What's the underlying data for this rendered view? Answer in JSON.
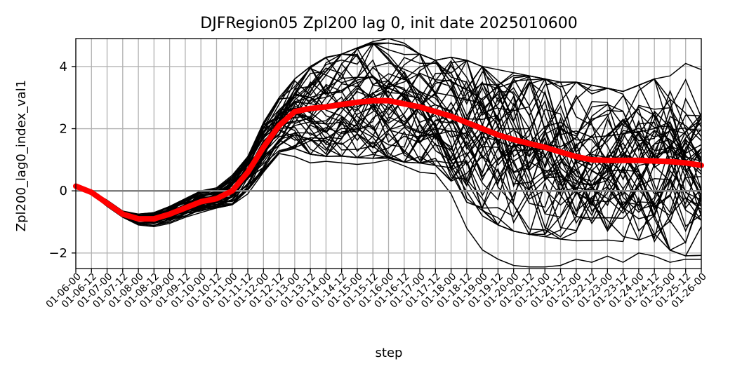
{
  "chart_data": {
    "type": "line",
    "title": "DJFRegion05 Zpl200 lag 0, init date 2025010600",
    "xlabel": "step",
    "ylabel": "Zpl200_lag0_index_val1",
    "categories": [
      "01-06-00",
      "01-06-12",
      "01-07-00",
      "01-07-12",
      "01-08-00",
      "01-08-12",
      "01-09-00",
      "01-09-12",
      "01-10-00",
      "01-10-12",
      "01-11-00",
      "01-11-12",
      "01-12-00",
      "01-12-12",
      "01-13-00",
      "01-13-12",
      "01-14-00",
      "01-14-12",
      "01-15-00",
      "01-15-12",
      "01-16-00",
      "01-16-12",
      "01-17-00",
      "01-17-12",
      "01-18-00",
      "01-18-12",
      "01-19-00",
      "01-19-12",
      "01-20-00",
      "01-20-12",
      "01-21-00",
      "01-21-12",
      "01-22-00",
      "01-22-12",
      "01-23-00",
      "01-23-12",
      "01-24-00",
      "01-24-12",
      "01-25-00",
      "01-25-12",
      "01-26-00"
    ],
    "ylim": [
      -2.5,
      4.9
    ],
    "yticks": [
      -2,
      0,
      2,
      4
    ],
    "ytick_labels": [
      "−2",
      "0",
      "2",
      "4"
    ],
    "grid": true,
    "zero_line": 0,
    "colors": {
      "ensemble": "#000000",
      "mean": "#ff0000",
      "zero_line": "#808080",
      "grid": "#b0b0b0"
    },
    "mean_series": {
      "values": [
        0.15,
        -0.05,
        -0.4,
        -0.75,
        -0.9,
        -0.9,
        -0.75,
        -0.55,
        -0.35,
        -0.25,
        0.0,
        0.6,
        1.4,
        2.1,
        2.55,
        2.65,
        2.7,
        2.78,
        2.85,
        2.9,
        2.9,
        2.8,
        2.7,
        2.55,
        2.4,
        2.2,
        2.0,
        1.8,
        1.65,
        1.52,
        1.4,
        1.25,
        1.1,
        1.0,
        0.98,
        0.98,
        0.98,
        0.96,
        0.94,
        0.9,
        0.82
      ]
    },
    "ensemble_summary": {
      "members_approx": 50,
      "min": [
        0.15,
        -0.1,
        -0.5,
        -0.85,
        -1.1,
        -1.15,
        -1.05,
        -0.85,
        -0.7,
        -0.55,
        -0.45,
        -0.1,
        0.6,
        1.2,
        1.1,
        0.9,
        0.95,
        0.9,
        0.85,
        0.9,
        1.0,
        0.8,
        0.6,
        0.55,
        -0.1,
        -1.2,
        -1.9,
        -2.2,
        -2.4,
        -2.45,
        -2.45,
        -2.4,
        -2.2,
        -2.3,
        -2.1,
        -2.3,
        -2.0,
        -2.1,
        -2.3,
        -2.2,
        -2.2
      ],
      "max": [
        0.15,
        0.0,
        -0.3,
        -0.65,
        -0.75,
        -0.7,
        -0.5,
        -0.25,
        0.0,
        0.1,
        0.5,
        1.1,
        2.2,
        3.0,
        3.6,
        4.0,
        4.3,
        4.4,
        4.6,
        4.8,
        4.9,
        4.75,
        4.4,
        4.2,
        4.3,
        4.2,
        4.0,
        3.9,
        3.8,
        3.7,
        3.6,
        3.5,
        3.5,
        3.4,
        3.3,
        3.2,
        3.4,
        3.6,
        3.7,
        4.1,
        3.9
      ]
    }
  }
}
